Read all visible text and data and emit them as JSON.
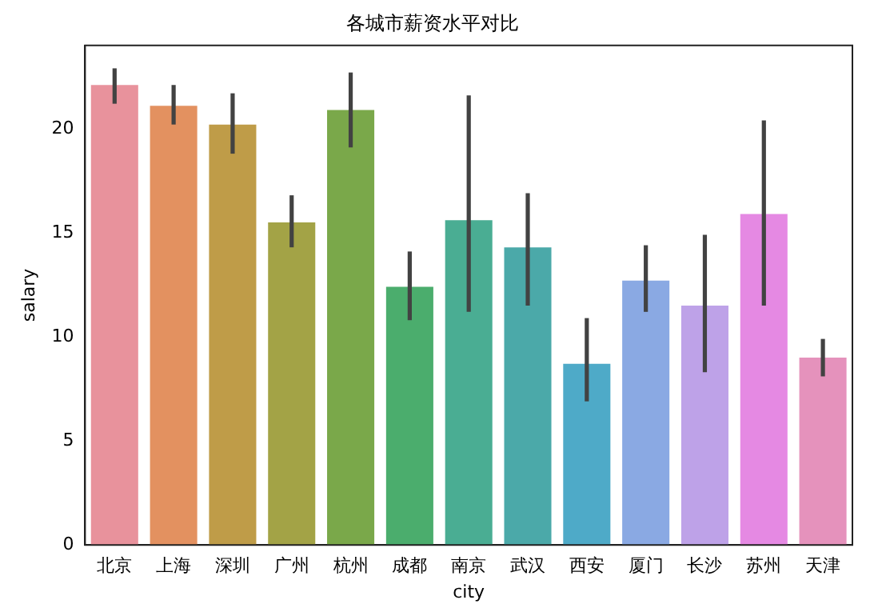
{
  "chart_data": {
    "type": "bar",
    "title": "各城市薪资水平对比",
    "xlabel": "city",
    "ylabel": "salary",
    "categories": [
      "北京",
      "上海",
      "深圳",
      "广州",
      "杭州",
      "成都",
      "南京",
      "武汉",
      "西安",
      "厦门",
      "长沙",
      "苏州",
      "天津"
    ],
    "values": [
      22.1,
      21.1,
      20.2,
      15.5,
      20.9,
      12.4,
      15.6,
      14.3,
      8.7,
      12.7,
      11.5,
      15.9,
      9.0
    ],
    "errors": [
      [
        21.2,
        22.9
      ],
      [
        20.2,
        22.1
      ],
      [
        18.8,
        21.7
      ],
      [
        14.3,
        16.8
      ],
      [
        19.1,
        22.7
      ],
      [
        10.8,
        14.1
      ],
      [
        11.2,
        21.6
      ],
      [
        11.5,
        16.9
      ],
      [
        6.9,
        10.9
      ],
      [
        11.2,
        14.4
      ],
      [
        8.3,
        14.9
      ],
      [
        11.5,
        20.4
      ],
      [
        8.1,
        9.9
      ]
    ],
    "colors": [
      "#e8929c",
      "#e39160",
      "#bf9c48",
      "#a3a346",
      "#7aa84a",
      "#4bad6d",
      "#4aad93",
      "#4ba9a9",
      "#4eaac8",
      "#8aa9e3",
      "#bea2e8",
      "#e589e3",
      "#e592bc"
    ],
    "ylim": [
      0,
      24
    ],
    "yticks": [
      0,
      5,
      10,
      15,
      20
    ],
    "grid": false,
    "legend": false
  }
}
